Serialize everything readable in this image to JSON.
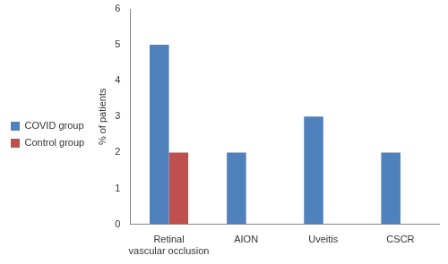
{
  "chart_data": {
    "type": "bar",
    "categories": [
      "Retinal vascular occlusion",
      "AION",
      "Uveitis",
      "CSCR"
    ],
    "series": [
      {
        "name": "COVID group",
        "color": "#4f81bd",
        "values": [
          5,
          2,
          3,
          2
        ]
      },
      {
        "name": "Control group",
        "color": "#c0504d",
        "values": [
          2,
          0,
          0,
          0
        ]
      }
    ],
    "y_label": "% of patients",
    "ylim": [
      0,
      6
    ],
    "yticks": [
      0,
      1,
      2,
      3,
      4,
      5,
      6
    ],
    "grid": false,
    "legend": "left"
  }
}
